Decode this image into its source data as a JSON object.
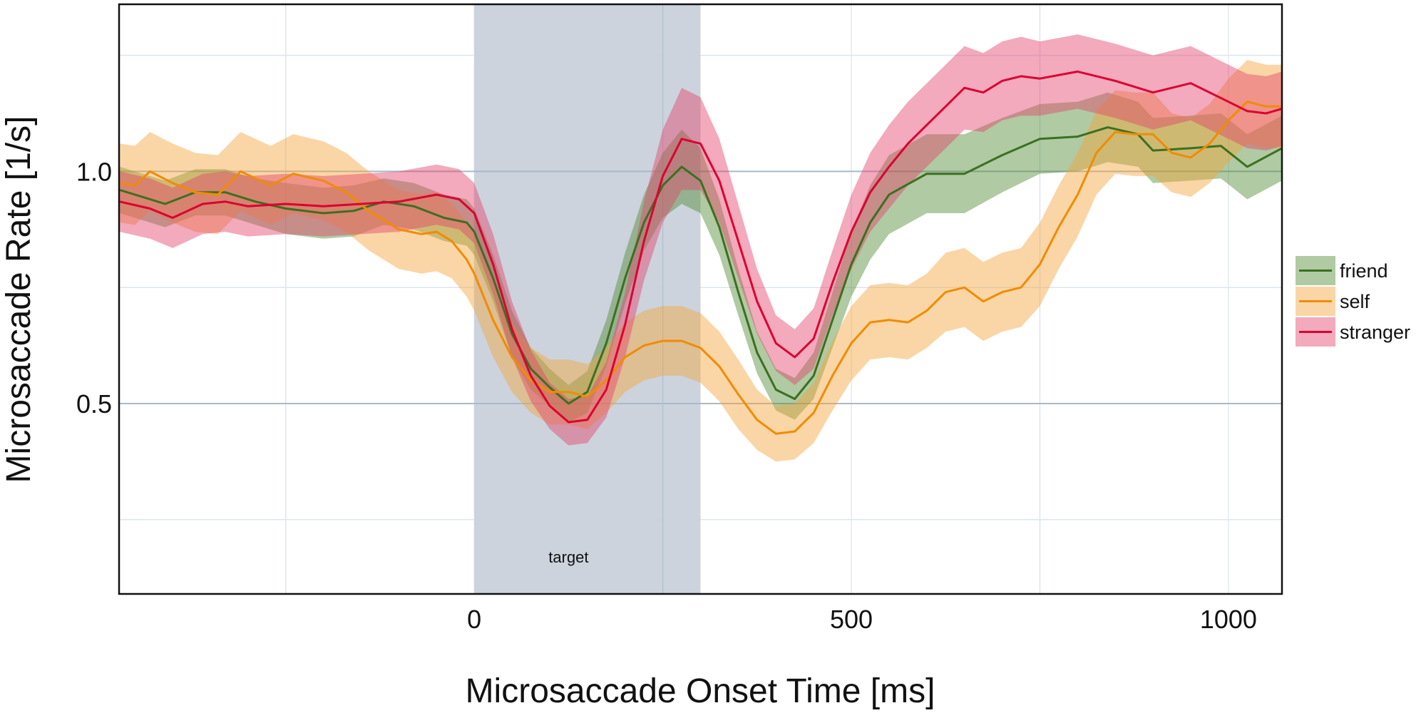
{
  "chart_data": {
    "type": "line",
    "xlabel": "Microsaccade Onset Time [ms]",
    "ylabel": "Microsaccade Rate [1/s]",
    "xlim": [
      -471,
      1071
    ],
    "ylim": [
      0.09,
      1.36
    ],
    "x_ticks": [
      0,
      500,
      1000
    ],
    "x_tick_labels": [
      "0",
      "500",
      "1000"
    ],
    "y_ticks": [
      0.5,
      1.0
    ],
    "y_tick_labels": [
      "0.5",
      "1.0"
    ],
    "minor_x_grid": [
      -250,
      250,
      750
    ],
    "minor_y_grid": [
      0.25,
      0.75,
      1.25
    ],
    "grid": true,
    "legend_position": "right",
    "shaded_region": {
      "x0": 0,
      "x1": 300,
      "label": "target",
      "label_x": 125,
      "label_y": 0.17,
      "color": "#c9d1db"
    },
    "series": [
      {
        "name": "friend",
        "line_color": "#3b7020",
        "band_color": "#4f8a34",
        "x": [
          -470,
          -440,
          -410,
          -370,
          -330,
          -290,
          -250,
          -200,
          -160,
          -120,
          -80,
          -40,
          -10,
          0,
          25,
          50,
          75,
          100,
          125,
          150,
          175,
          200,
          225,
          250,
          275,
          300,
          325,
          350,
          375,
          400,
          425,
          450,
          475,
          500,
          525,
          550,
          600,
          650,
          700,
          750,
          800,
          840,
          880,
          900,
          950,
          990,
          1025,
          1071
        ],
        "y": [
          0.96,
          0.945,
          0.93,
          0.955,
          0.955,
          0.935,
          0.92,
          0.91,
          0.915,
          0.935,
          0.925,
          0.9,
          0.89,
          0.87,
          0.77,
          0.65,
          0.575,
          0.535,
          0.5,
          0.525,
          0.63,
          0.77,
          0.89,
          0.97,
          1.01,
          0.98,
          0.88,
          0.74,
          0.61,
          0.53,
          0.51,
          0.56,
          0.68,
          0.8,
          0.89,
          0.95,
          0.995,
          0.995,
          1.035,
          1.07,
          1.075,
          1.095,
          1.08,
          1.045,
          1.05,
          1.055,
          1.01,
          1.05
        ],
        "ci_halfwidth": [
          0.05,
          0.05,
          0.05,
          0.05,
          0.05,
          0.05,
          0.055,
          0.055,
          0.055,
          0.05,
          0.05,
          0.05,
          0.05,
          0.05,
          0.05,
          0.05,
          0.045,
          0.04,
          0.04,
          0.045,
          0.05,
          0.055,
          0.06,
          0.07,
          0.08,
          0.07,
          0.06,
          0.05,
          0.045,
          0.045,
          0.045,
          0.05,
          0.06,
          0.07,
          0.08,
          0.085,
          0.085,
          0.085,
          0.08,
          0.075,
          0.075,
          0.075,
          0.07,
          0.07,
          0.07,
          0.07,
          0.07,
          0.07
        ]
      },
      {
        "name": "self",
        "line_color": "#f08c00",
        "band_color": "#f5a53a",
        "x": [
          -470,
          -450,
          -430,
          -400,
          -370,
          -340,
          -310,
          -270,
          -240,
          -200,
          -170,
          -140,
          -100,
          -70,
          -50,
          -30,
          -10,
          0,
          25,
          50,
          75,
          100,
          125,
          150,
          175,
          200,
          225,
          250,
          275,
          300,
          325,
          350,
          375,
          400,
          425,
          450,
          475,
          500,
          525,
          550,
          575,
          600,
          625,
          650,
          675,
          700,
          725,
          750,
          775,
          800,
          825,
          850,
          875,
          900,
          925,
          950,
          975,
          1000,
          1025,
          1050,
          1071
        ],
        "y": [
          0.975,
          0.97,
          1.0,
          0.975,
          0.955,
          0.95,
          1.0,
          0.97,
          0.995,
          0.98,
          0.955,
          0.915,
          0.875,
          0.865,
          0.87,
          0.85,
          0.81,
          0.78,
          0.68,
          0.6,
          0.55,
          0.525,
          0.525,
          0.515,
          0.55,
          0.6,
          0.625,
          0.635,
          0.635,
          0.62,
          0.58,
          0.52,
          0.465,
          0.435,
          0.44,
          0.48,
          0.56,
          0.63,
          0.675,
          0.68,
          0.675,
          0.7,
          0.74,
          0.75,
          0.72,
          0.74,
          0.75,
          0.8,
          0.88,
          0.95,
          1.04,
          1.085,
          1.08,
          1.08,
          1.04,
          1.03,
          1.06,
          1.11,
          1.15,
          1.14,
          1.14
        ],
        "ci_halfwidth": [
          0.085,
          0.085,
          0.085,
          0.085,
          0.085,
          0.085,
          0.085,
          0.085,
          0.085,
          0.085,
          0.085,
          0.085,
          0.085,
          0.085,
          0.085,
          0.08,
          0.08,
          0.08,
          0.08,
          0.075,
          0.07,
          0.07,
          0.07,
          0.07,
          0.07,
          0.075,
          0.075,
          0.075,
          0.075,
          0.075,
          0.075,
          0.075,
          0.065,
          0.06,
          0.06,
          0.065,
          0.075,
          0.08,
          0.08,
          0.08,
          0.08,
          0.08,
          0.085,
          0.085,
          0.085,
          0.085,
          0.085,
          0.09,
          0.09,
          0.09,
          0.09,
          0.09,
          0.09,
          0.09,
          0.085,
          0.085,
          0.085,
          0.09,
          0.09,
          0.09,
          0.09
        ]
      },
      {
        "name": "stranger",
        "line_color": "#dc0030",
        "band_color": "#e3426a",
        "x": [
          -470,
          -430,
          -400,
          -360,
          -330,
          -300,
          -250,
          -200,
          -150,
          -100,
          -50,
          -20,
          0,
          25,
          50,
          75,
          100,
          125,
          150,
          175,
          200,
          225,
          250,
          275,
          300,
          325,
          350,
          375,
          400,
          425,
          450,
          475,
          500,
          525,
          550,
          575,
          600,
          625,
          650,
          675,
          700,
          725,
          750,
          800,
          850,
          900,
          950,
          1000,
          1025,
          1050,
          1071
        ],
        "y": [
          0.935,
          0.92,
          0.9,
          0.93,
          0.935,
          0.925,
          0.93,
          0.925,
          0.93,
          0.935,
          0.95,
          0.94,
          0.91,
          0.8,
          0.66,
          0.56,
          0.495,
          0.46,
          0.465,
          0.53,
          0.67,
          0.85,
          0.99,
          1.07,
          1.06,
          0.98,
          0.85,
          0.72,
          0.63,
          0.6,
          0.64,
          0.76,
          0.87,
          0.955,
          1.01,
          1.06,
          1.1,
          1.14,
          1.18,
          1.17,
          1.195,
          1.205,
          1.2,
          1.215,
          1.195,
          1.17,
          1.19,
          1.15,
          1.13,
          1.125,
          1.135
        ],
        "ci_halfwidth": [
          0.065,
          0.065,
          0.065,
          0.065,
          0.065,
          0.065,
          0.065,
          0.065,
          0.065,
          0.065,
          0.065,
          0.065,
          0.065,
          0.065,
          0.06,
          0.055,
          0.05,
          0.05,
          0.05,
          0.06,
          0.07,
          0.085,
          0.1,
          0.11,
          0.1,
          0.09,
          0.08,
          0.07,
          0.06,
          0.06,
          0.065,
          0.07,
          0.08,
          0.085,
          0.09,
          0.09,
          0.09,
          0.09,
          0.09,
          0.085,
          0.085,
          0.085,
          0.08,
          0.08,
          0.08,
          0.08,
          0.08,
          0.08,
          0.08,
          0.08,
          0.08
        ]
      }
    ]
  }
}
